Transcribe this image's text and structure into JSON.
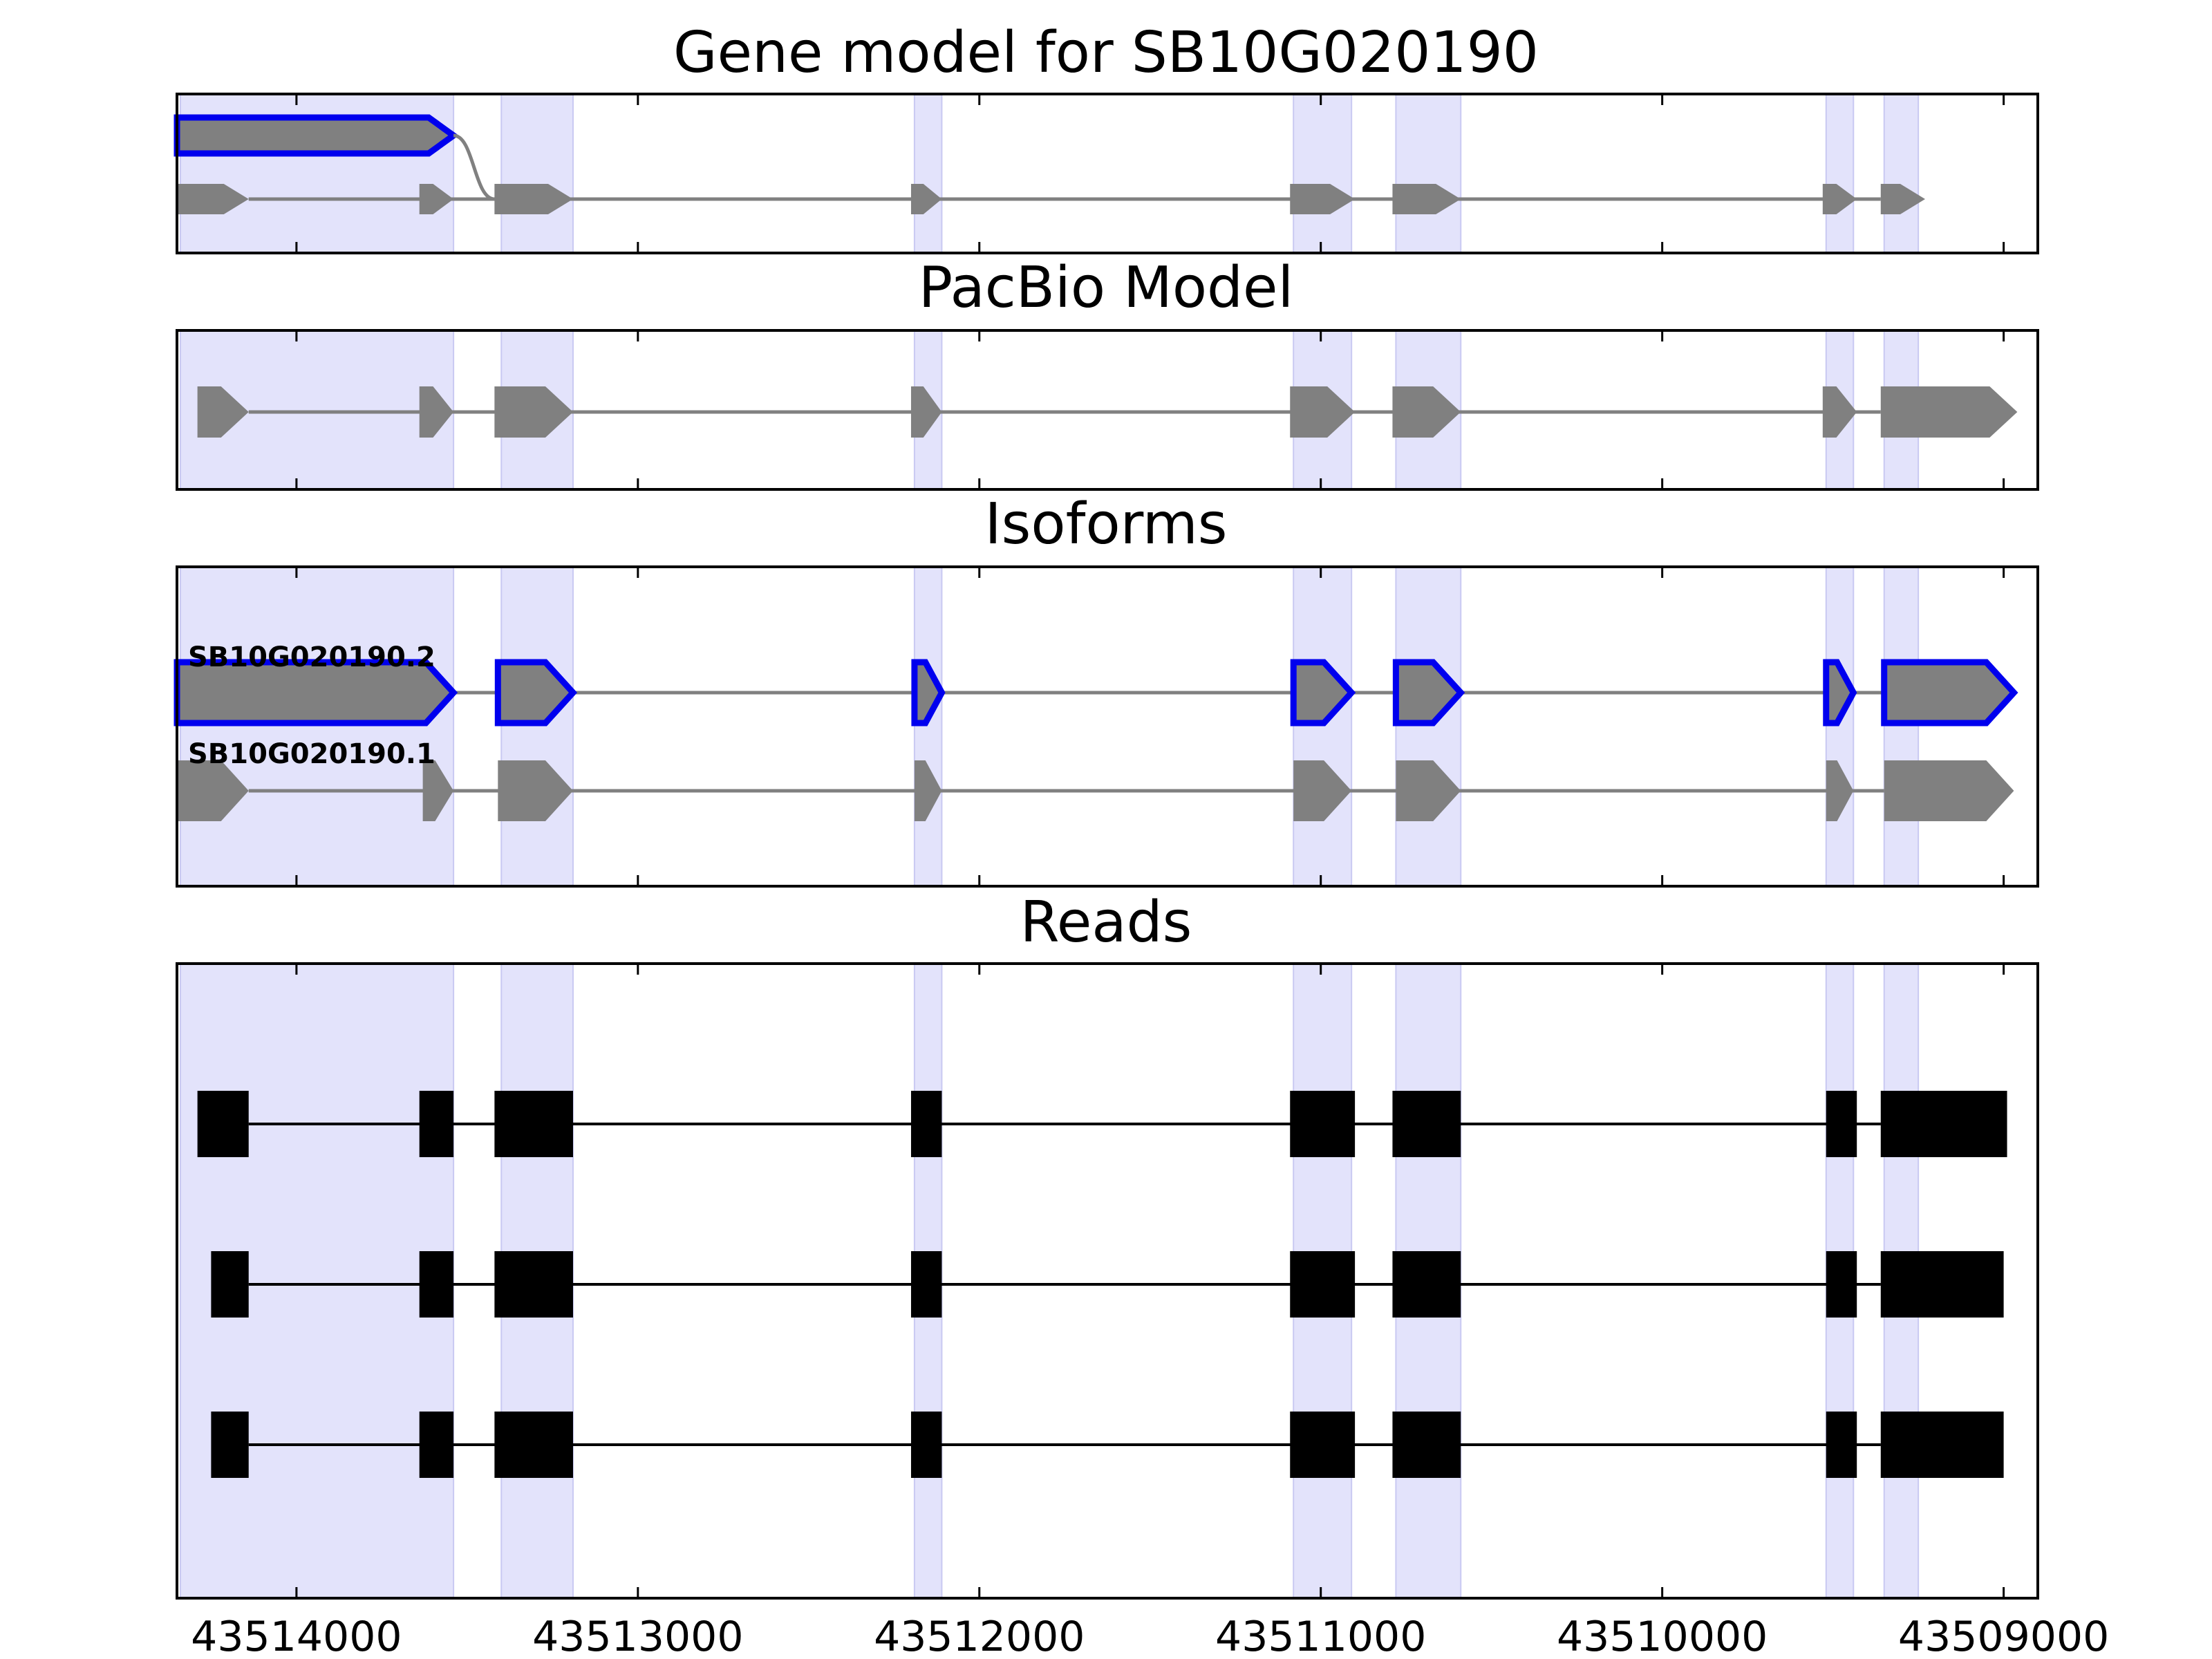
{
  "chart_data": {
    "type": "gene-structure",
    "x_axis": {
      "reversed": true,
      "range": [
        43514350,
        43508900
      ],
      "ticks": [
        43514000,
        43513000,
        43512000,
        43511000,
        43510000,
        43509000
      ],
      "tick_labels": [
        "43514000",
        "43513000",
        "43512000",
        "43511000",
        "43510000",
        "43509000"
      ]
    },
    "colors": {
      "exon": "#808080",
      "intron": "#808080",
      "highlight_outline": "#0000ee",
      "read": "#000000",
      "shade": "#e3e3fb",
      "shade_edge": "#c9c9f2"
    },
    "shaded_regions": [
      [
        43514340,
        43513540
      ],
      [
        43513400,
        43513190
      ],
      [
        43512190,
        43512110
      ],
      [
        43511080,
        43510910
      ],
      [
        43510780,
        43510590
      ],
      [
        43509520,
        43509440
      ],
      [
        43509350,
        43509250
      ]
    ],
    "panels": [
      {
        "title": "Gene model for SB10G020190",
        "tracks": [
          {
            "highlighted": true,
            "exons": [
              [
                43514350,
                43513540
              ]
            ],
            "arrow_end": true
          },
          {
            "highlighted": false,
            "exons": [
              [
                43514350,
                43514140
              ],
              [
                43513640,
                43513540
              ],
              [
                43513420,
                43513190
              ],
              [
                43512200,
                43512110
              ],
              [
                43511090,
                43510900
              ],
              [
                43510790,
                43510590
              ],
              [
                43509530,
                43509430
              ],
              [
                43509360,
                43509230
              ]
            ],
            "arrow_end": true,
            "connector_from_track": 0
          }
        ]
      },
      {
        "title": "PacBio Model",
        "tracks": [
          {
            "highlighted": false,
            "exons": [
              [
                43514290,
                43514140
              ],
              [
                43513640,
                43513540
              ],
              [
                43513420,
                43513190
              ],
              [
                43512200,
                43512110
              ],
              [
                43511090,
                43510900
              ],
              [
                43510790,
                43510590
              ],
              [
                43509530,
                43509430
              ],
              [
                43509360,
                43508960
              ]
            ],
            "arrow_end": true
          }
        ]
      },
      {
        "title": "Isoforms",
        "tracks": [
          {
            "label": "SB10G020190.2",
            "highlighted": true,
            "exons": [
              [
                43514350,
                43513540
              ],
              [
                43513410,
                43513190
              ],
              [
                43512190,
                43512110
              ],
              [
                43511080,
                43510910
              ],
              [
                43510780,
                43510590
              ],
              [
                43509520,
                43509440
              ],
              [
                43509350,
                43508970
              ]
            ],
            "arrow_end": true
          },
          {
            "label": "SB10G020190.1",
            "highlighted": false,
            "exons": [
              [
                43514350,
                43514140
              ],
              [
                43513630,
                43513540
              ],
              [
                43513410,
                43513190
              ],
              [
                43512190,
                43512110
              ],
              [
                43511080,
                43510910
              ],
              [
                43510780,
                43510590
              ],
              [
                43509520,
                43509440
              ],
              [
                43509350,
                43508970
              ]
            ],
            "arrow_end": true
          }
        ]
      },
      {
        "title": "Reads",
        "tracks": [
          {
            "exons": [
              [
                43514290,
                43514140
              ],
              [
                43513640,
                43513540
              ],
              [
                43513420,
                43513190
              ],
              [
                43512200,
                43512110
              ],
              [
                43511090,
                43510900
              ],
              [
                43510790,
                43510590
              ],
              [
                43509520,
                43509430
              ],
              [
                43509360,
                43508990
              ]
            ]
          },
          {
            "exons": [
              [
                43514250,
                43514140
              ],
              [
                43513640,
                43513540
              ],
              [
                43513420,
                43513190
              ],
              [
                43512200,
                43512110
              ],
              [
                43511090,
                43510900
              ],
              [
                43510790,
                43510590
              ],
              [
                43509520,
                43509430
              ],
              [
                43509360,
                43509000
              ]
            ]
          },
          {
            "exons": [
              [
                43514250,
                43514140
              ],
              [
                43513640,
                43513540
              ],
              [
                43513420,
                43513190
              ],
              [
                43512200,
                43512110
              ],
              [
                43511090,
                43510900
              ],
              [
                43510790,
                43510590
              ],
              [
                43509520,
                43509430
              ],
              [
                43509360,
                43509000
              ]
            ]
          }
        ]
      }
    ]
  }
}
